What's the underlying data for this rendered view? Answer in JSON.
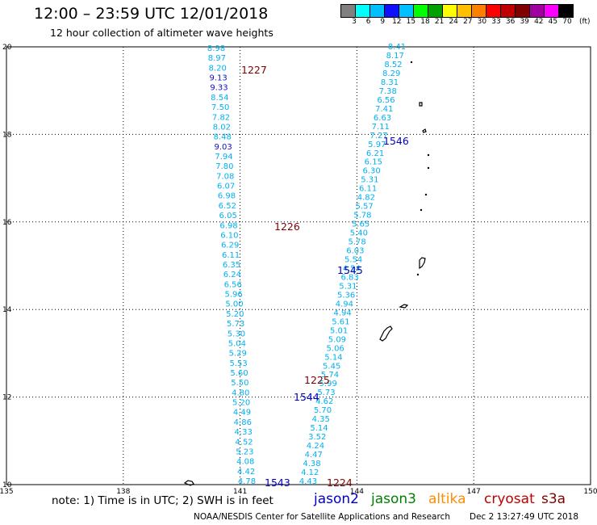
{
  "header": {
    "title": "12:00 – 23:59 UTC 12/01/2018",
    "subtitle": "12 hour collection of altimeter wave heights"
  },
  "colorbar": {
    "unit": "(ft)",
    "labels": [
      "3",
      "6",
      "9",
      "12",
      "15",
      "18",
      "21",
      "24",
      "27",
      "30",
      "33",
      "36",
      "39",
      "42",
      "45",
      "70"
    ],
    "colors": [
      "#808080",
      "#00ffff",
      "#00bfff",
      "#1010ff",
      "#00c0ff",
      "#00ff00",
      "#00a000",
      "#ffff00",
      "#ffc000",
      "#ff8000",
      "#ff0000",
      "#c00000",
      "#800000",
      "#a000a0",
      "#ff00ff",
      "#000000"
    ]
  },
  "axes": {
    "x_ticks": [
      "135",
      "138",
      "141",
      "144",
      "147",
      "150"
    ],
    "y_ticks": [
      "10",
      "12",
      "14",
      "16",
      "18",
      "20"
    ]
  },
  "tracks": {
    "jason3_west": {
      "color": "#00bfff",
      "values": [
        "8.98",
        "8.97",
        "8.20",
        "9.13",
        "9.33",
        "8.54",
        "7.50",
        "7.82",
        "8.02",
        "8.48",
        "9.03",
        "7.94",
        "7.80",
        "7.08",
        "6.07",
        "6.98",
        "6.52",
        "6.05",
        "6.98",
        "6.10",
        "6.29",
        "6.11",
        "6.35",
        "6.24",
        "6.56",
        "5.96",
        "5.00",
        "5.20",
        "5.73",
        "5.30",
        "5.04",
        "5.29",
        "5.53",
        "5.60",
        "5.50",
        "4.80",
        "5.20",
        "4.49",
        "4.86",
        "4.33",
        "4.52",
        "5.23",
        "4.08",
        "4.42",
        "4.78"
      ],
      "labels": [
        {
          "text": "1227",
          "color": "#800000"
        },
        {
          "text": "1226",
          "color": "#800000"
        }
      ]
    },
    "jason2_east": {
      "color": "#00bfff",
      "values": [
        "8.41",
        "8.17",
        "8.52",
        "8.29",
        "8.31",
        "7.38",
        "6.56",
        "7.41",
        "6.63",
        "7.11",
        "7.27",
        "5.97",
        "6.21",
        "6.15",
        "6.30",
        "5.31",
        "6.11",
        "4.82",
        "5.57",
        "5.78",
        "5.65",
        "5.40",
        "5.78",
        "6.03",
        "5.54",
        "4.54",
        "6.83",
        "5.31",
        "5.36",
        "4.94",
        "4.94",
        "5.61",
        "5.01",
        "5.09",
        "5.06",
        "5.14",
        "5.45",
        "5.74",
        "5.99",
        "5.73",
        "4.62",
        "5.70",
        "4.35",
        "5.14",
        "3.52",
        "4.24",
        "4.47",
        "4.38",
        "4.12",
        "4.43"
      ],
      "labels": [
        {
          "text": "1546",
          "color": "#0000c0"
        },
        {
          "text": "1545",
          "color": "#0000c0"
        },
        {
          "text": "1544",
          "color": "#0000c0"
        },
        {
          "text": "1543",
          "color": "#0000c0"
        },
        {
          "text": "1225",
          "color": "#800000"
        },
        {
          "text": "1224",
          "color": "#800000"
        }
      ]
    }
  },
  "legend": {
    "note": "note: 1) Time is in UTC; 2) SWH is in feet",
    "satellites": [
      {
        "name": "jason2",
        "color": "#0000cc"
      },
      {
        "name": "jason3",
        "color": "#008000"
      },
      {
        "name": "altika",
        "color": "#ff8c00"
      },
      {
        "name": "cryosat",
        "color": "#c00000"
      },
      {
        "name": "s3a",
        "color": "#800000"
      }
    ]
  },
  "footer": {
    "credit": "NOAA/NESDIS Center for Satellite Applications and Research",
    "timestamp": "Dec  2 13:27:49 UTC 2018"
  }
}
